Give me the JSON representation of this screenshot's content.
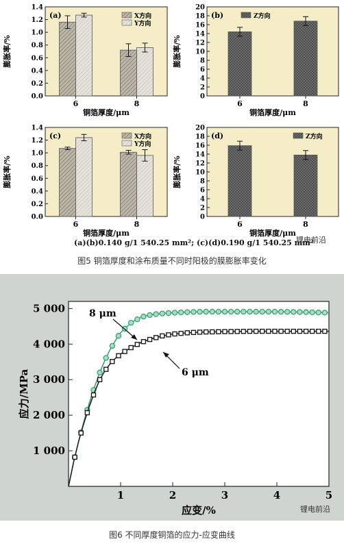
{
  "figure5": {
    "caption": "图5 铜箔厚度和涂布质量不同时阳极的膜膨胀率变化",
    "condition_note": "(a)(b)0.140 g/1 540.25 mm²; (c)(d)0.190 g/1 540.25 mm²",
    "colors": {
      "bg": "#f5ecc8",
      "x_bar": "#bdb7aa",
      "y_bar": "#e6e3dc",
      "z_bar": "#777777"
    }
  },
  "chart_data": [
    {
      "id": "a",
      "type": "bar",
      "panel_label": "(a)",
      "categories": [
        "6",
        "8"
      ],
      "series": [
        {
          "name": "X方向",
          "values": [
            1.16,
            0.72
          ],
          "errors": [
            0.1,
            0.1
          ]
        },
        {
          "name": "Y方向",
          "values": [
            1.27,
            0.76
          ],
          "errors": [
            0.03,
            0.07
          ]
        }
      ],
      "ylabel": "膨胀率/%",
      "xlabel": "铜箔厚度/μm",
      "ylim": [
        0,
        1.4
      ],
      "yticks": [
        "0.0",
        "0.2",
        "0.4",
        "0.6",
        "0.8",
        "1.0",
        "1.2",
        "1.4"
      ],
      "legend": "top-right"
    },
    {
      "id": "b",
      "type": "bar",
      "panel_label": "(b)",
      "categories": [
        "6",
        "8"
      ],
      "series": [
        {
          "name": "Z方向",
          "values": [
            14.4,
            16.8
          ],
          "errors": [
            1.0,
            1.0
          ]
        }
      ],
      "ylabel": "膨胀率/%",
      "xlabel": "铜箔厚度/μm",
      "ylim": [
        0,
        20
      ],
      "yticks": [
        "0",
        "2",
        "4",
        "6",
        "8",
        "10",
        "12",
        "14",
        "16",
        "18",
        "20"
      ],
      "legend": "top-left"
    },
    {
      "id": "c",
      "type": "bar",
      "panel_label": "(c)",
      "categories": [
        "6",
        "8"
      ],
      "series": [
        {
          "name": "X方向",
          "values": [
            1.07,
            1.01
          ],
          "errors": [
            0.02,
            0.03
          ]
        },
        {
          "name": "Y方向",
          "values": [
            1.24,
            0.96
          ],
          "errors": [
            0.05,
            0.09
          ]
        }
      ],
      "ylabel": "膨胀率/%",
      "xlabel": "铜箔厚度/μm",
      "ylim": [
        0,
        1.4
      ],
      "yticks": [
        "0.0",
        "0.2",
        "0.4",
        "0.6",
        "0.8",
        "1.0",
        "1.2",
        "1.4"
      ],
      "legend": "top-right"
    },
    {
      "id": "d",
      "type": "bar",
      "panel_label": "(d)",
      "categories": [
        "6",
        "8"
      ],
      "series": [
        {
          "name": "Z方向",
          "values": [
            15.9,
            13.8
          ],
          "errors": [
            1.0,
            1.0
          ]
        }
      ],
      "ylabel": "膨胀率/%",
      "xlabel": "铜箔厚度/μm",
      "ylim": [
        0,
        20
      ],
      "yticks": [
        "0",
        "2",
        "4",
        "6",
        "8",
        "10",
        "12",
        "14",
        "16",
        "18",
        "20"
      ],
      "legend": "top-right"
    },
    {
      "id": "stress",
      "type": "line",
      "ylabel": "应力/MPa",
      "xlabel": "应变/%",
      "xlim": [
        0,
        5
      ],
      "ylim": [
        0,
        5200
      ],
      "xticks": [
        "1",
        "2",
        "3",
        "4",
        "5"
      ],
      "yticks": [
        "1 000",
        "2 000",
        "3 000",
        "4 000",
        "5 000"
      ],
      "series": [
        {
          "name": "8 μm",
          "color": "#2e9d6b",
          "x": [
            0,
            0.1,
            0.2,
            0.3,
            0.4,
            0.5,
            0.6,
            0.7,
            0.8,
            0.9,
            1.0,
            1.2,
            1.4,
            1.6,
            1.8,
            2.0,
            2.3,
            2.6,
            3.0,
            3.5,
            4.0,
            4.5,
            5.0
          ],
          "y": [
            0,
            700,
            1300,
            1850,
            2350,
            2800,
            3200,
            3550,
            3850,
            4100,
            4320,
            4600,
            4760,
            4830,
            4860,
            4880,
            4900,
            4910,
            4910,
            4910,
            4910,
            4900,
            4880
          ]
        },
        {
          "name": "6 μm",
          "color": "#1a1a1a",
          "x": [
            0,
            0.1,
            0.2,
            0.3,
            0.4,
            0.5,
            0.6,
            0.7,
            0.8,
            0.9,
            1.0,
            1.2,
            1.4,
            1.6,
            1.8,
            2.0,
            2.3,
            2.6,
            3.0,
            3.5,
            4.0,
            4.5,
            5.0
          ],
          "y": [
            0,
            700,
            1300,
            1800,
            2250,
            2650,
            3000,
            3250,
            3450,
            3600,
            3720,
            3900,
            4050,
            4150,
            4230,
            4280,
            4320,
            4340,
            4350,
            4360,
            4360,
            4360,
            4360
          ]
        }
      ]
    }
  ],
  "figure6": {
    "caption": "图6 不同厚度铜箔的应力-应变曲线",
    "bg": "#d0d4d1",
    "series_labels": [
      "8 μm",
      "6 μm"
    ]
  },
  "watermark": {
    "text": "锂电前沿"
  }
}
